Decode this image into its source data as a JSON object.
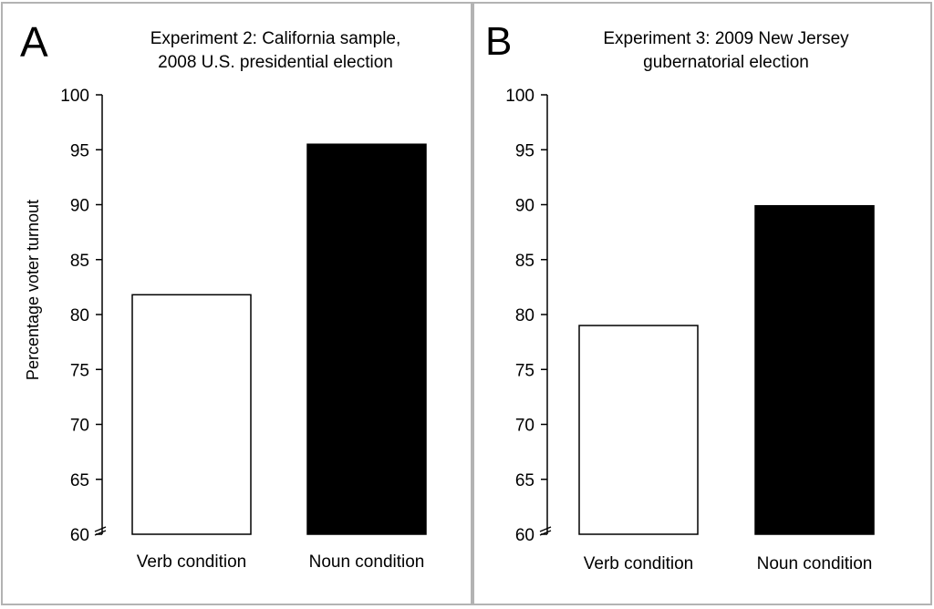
{
  "panels": [
    {
      "letter": "A",
      "title_lines": [
        "Experiment 2: California sample,",
        "2008 U.S. presidential election"
      ]
    },
    {
      "letter": "B",
      "title_lines": [
        "Experiment 3: 2009 New Jersey",
        "gubernatorial election"
      ]
    }
  ],
  "chart_data": [
    {
      "type": "bar",
      "title": "Experiment 2: California sample, 2008 U.S. presidential election",
      "ylabel": "Percentage voter turnout",
      "xlabel": "",
      "categories": [
        "Verb condition",
        "Noun condition"
      ],
      "values": [
        81.8,
        95.5
      ],
      "bar_colors": [
        "#ffffff",
        "#000000"
      ],
      "ylim": [
        60,
        100
      ],
      "yticks": [
        "60",
        "65",
        "70",
        "75",
        "80",
        "85",
        "90",
        "95",
        "100"
      ],
      "grid": false
    },
    {
      "type": "bar",
      "title": "Experiment 3: 2009 New Jersey gubernatorial election",
      "ylabel": "",
      "xlabel": "",
      "categories": [
        "Verb condition",
        "Noun condition"
      ],
      "values": [
        79.0,
        89.9
      ],
      "bar_colors": [
        "#ffffff",
        "#000000"
      ],
      "ylim": [
        60,
        100
      ],
      "yticks": [
        "60",
        "65",
        "70",
        "75",
        "80",
        "85",
        "90",
        "95",
        "100"
      ],
      "grid": false
    }
  ]
}
